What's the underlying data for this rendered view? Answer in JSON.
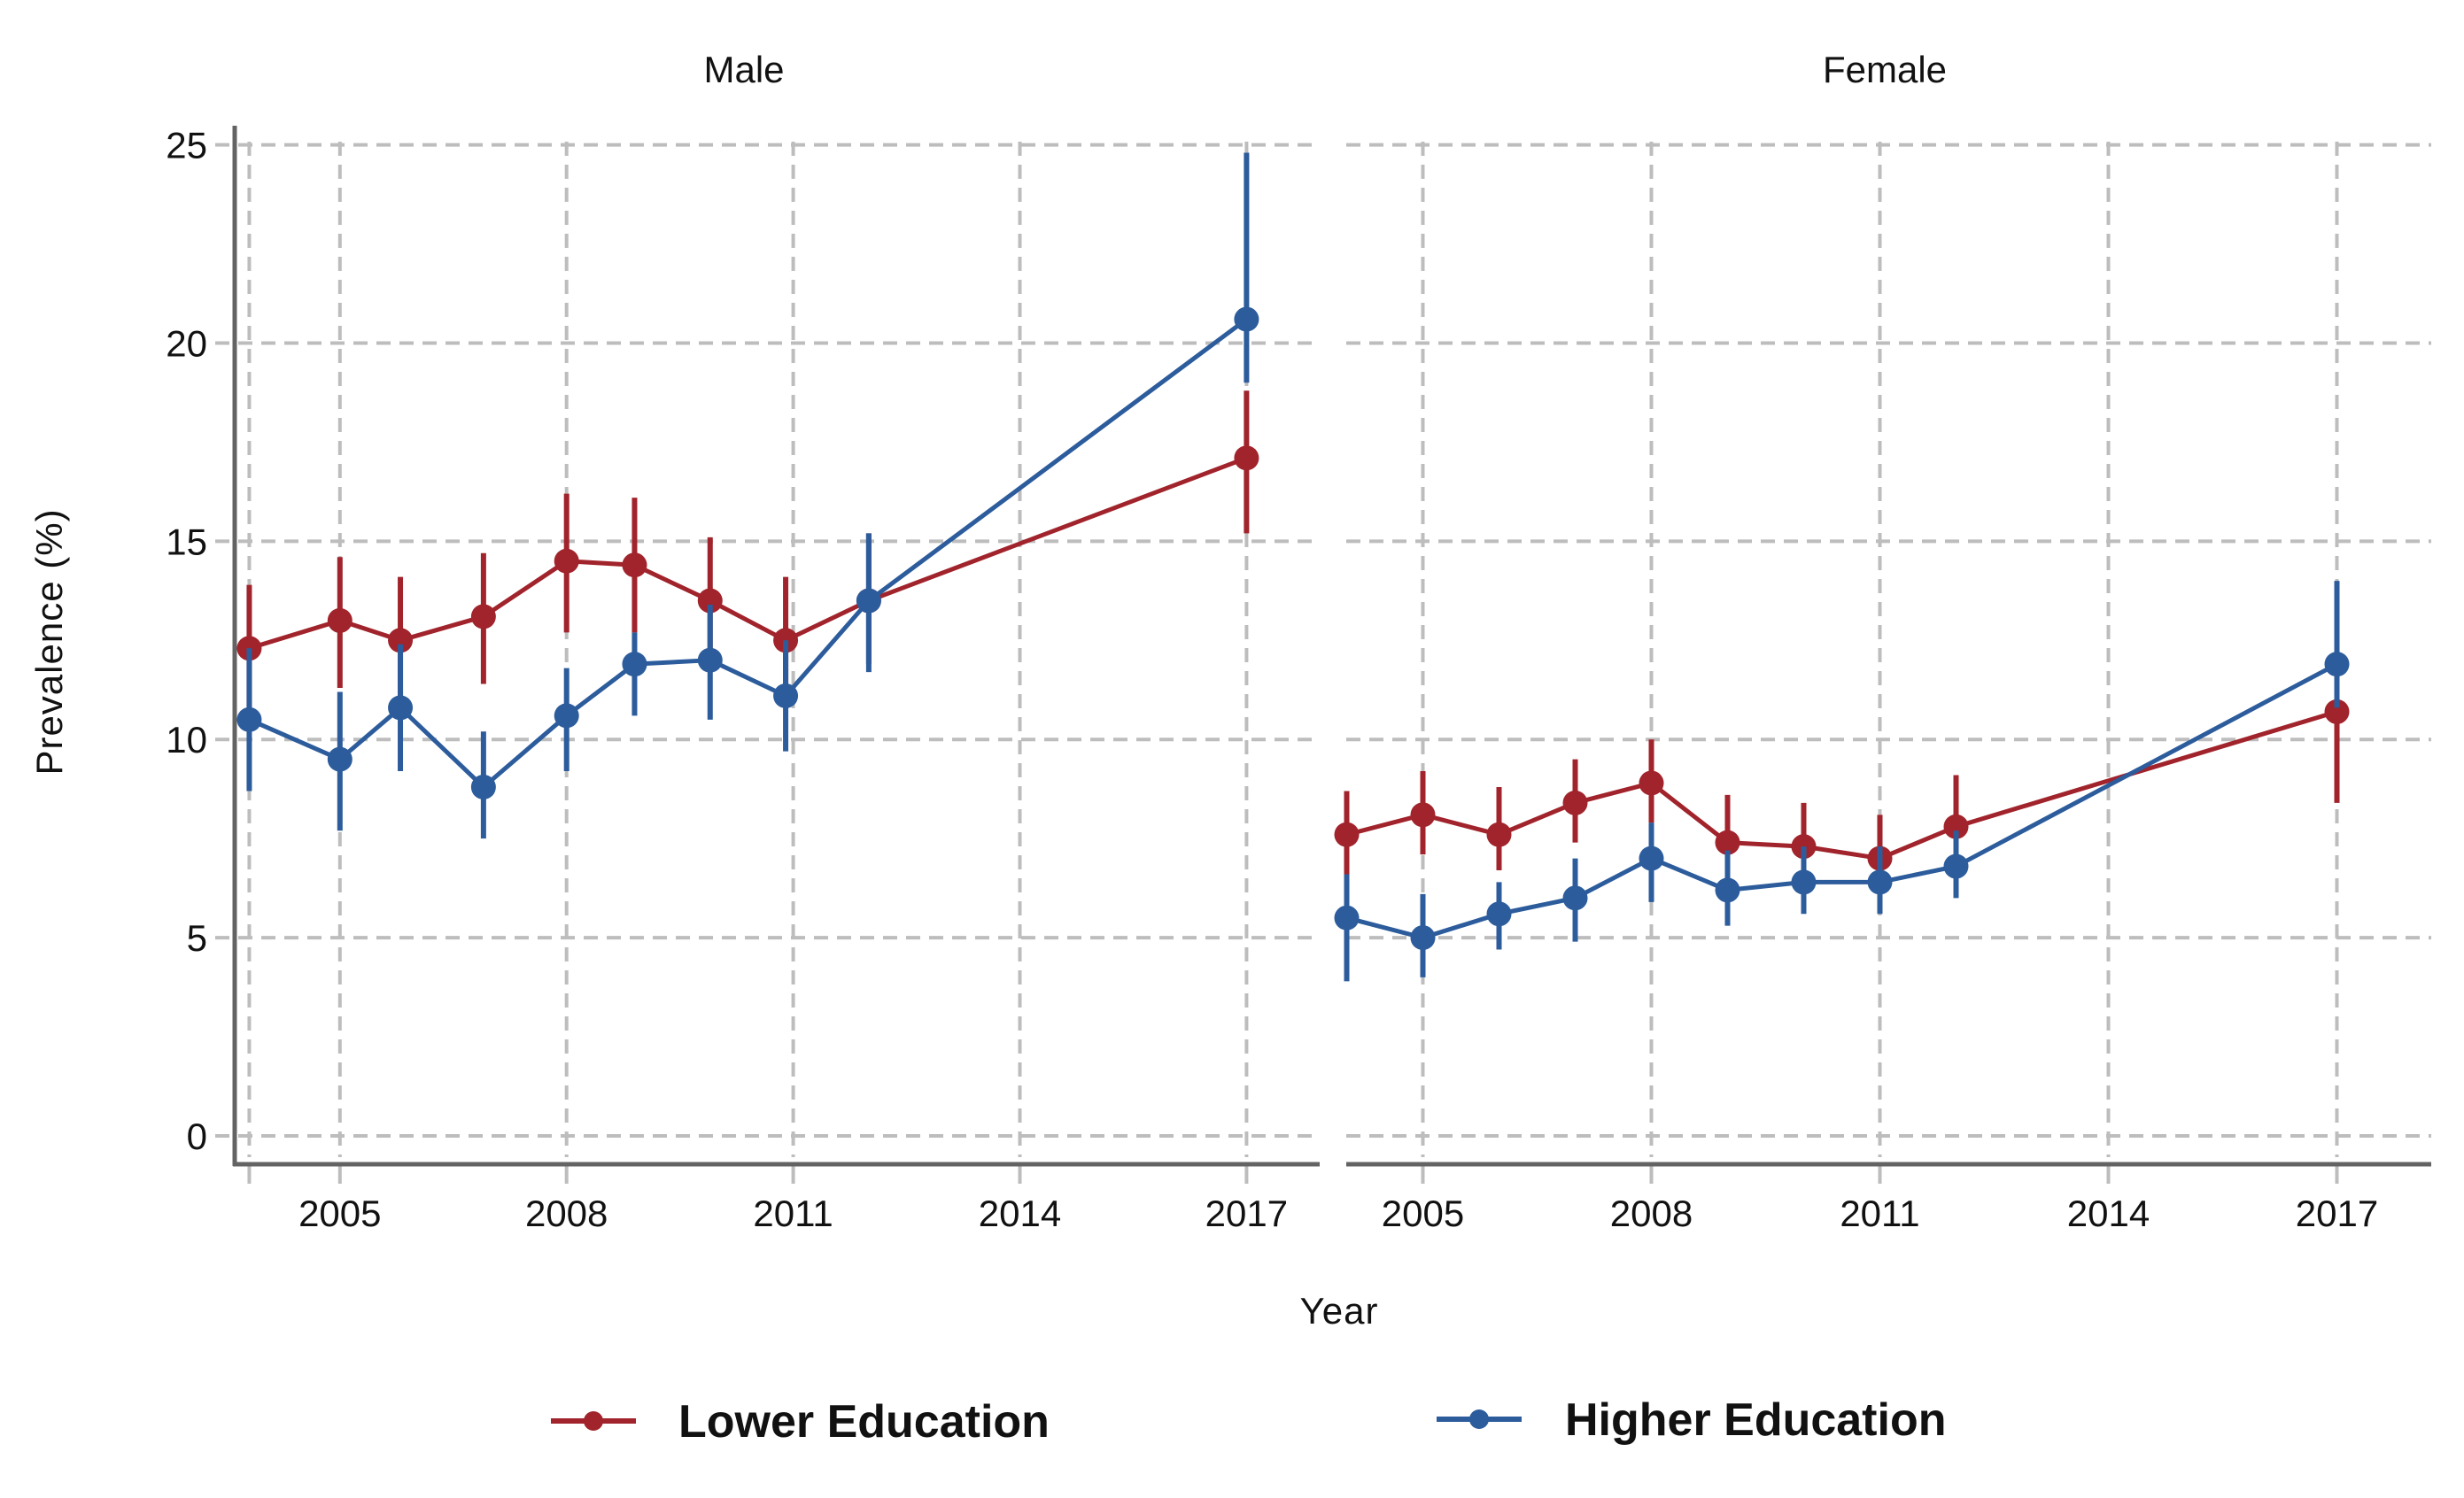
{
  "chart_data": {
    "type": "line",
    "title": "",
    "xlabel": "Year",
    "ylabel": "Prevalence (%)",
    "ylim": [
      0,
      25
    ],
    "yticks": [
      "0",
      "5",
      "10",
      "15",
      "20",
      "25"
    ],
    "xticks": [
      "2005",
      "2008",
      "2011",
      "2014",
      "2017"
    ],
    "grid": true,
    "legend_position": "bottom",
    "legend": [
      {
        "name": "Lower Education",
        "color": "#a1232b"
      },
      {
        "name": "Higher Education",
        "color": "#2c5c9c"
      }
    ],
    "panels": [
      {
        "label": "Male",
        "x": [
          2003.8,
          2005.0,
          2005.8,
          2006.9,
          2008.0,
          2008.9,
          2009.9,
          2010.9,
          2012.0,
          2017.0
        ],
        "series": [
          {
            "name": "Lower Education",
            "color": "#a1232b",
            "values": [
              12.3,
              13.0,
              12.5,
              13.1,
              14.5,
              14.4,
              13.5,
              12.5,
              13.5,
              17.1
            ],
            "ci_low": [
              10.8,
              11.3,
              11.1,
              11.4,
              12.7,
              12.7,
              11.9,
              10.8,
              11.9,
              15.2
            ],
            "ci_high": [
              13.9,
              14.6,
              14.1,
              14.7,
              16.2,
              16.1,
              15.1,
              14.1,
              15.2,
              18.8
            ]
          },
          {
            "name": "Higher Education",
            "color": "#2c5c9c",
            "values": [
              10.5,
              9.5,
              10.8,
              8.8,
              10.6,
              11.9,
              12.0,
              11.1,
              13.5,
              20.6
            ],
            "ci_low": [
              8.7,
              7.7,
              9.2,
              7.5,
              9.2,
              10.6,
              10.5,
              9.7,
              11.7,
              19.0
            ],
            "ci_high": [
              12.3,
              11.2,
              12.4,
              10.2,
              11.8,
              12.7,
              13.4,
              12.5,
              15.2,
              24.8
            ]
          }
        ]
      },
      {
        "label": "Female",
        "x": [
          2004,
          2005,
          2006,
          2007,
          2008,
          2009,
          2010,
          2011,
          2012,
          2017
        ],
        "series": [
          {
            "name": "Lower Education",
            "color": "#a1232b",
            "values": [
              7.6,
              8.1,
              7.6,
              8.4,
              8.9,
              7.4,
              7.3,
              7.0,
              7.8,
              10.7
            ],
            "ci_low": [
              6.6,
              7.1,
              6.7,
              7.4,
              7.9,
              6.3,
              6.7,
              6.0,
              7.0,
              8.4
            ],
            "ci_high": [
              8.7,
              9.2,
              8.8,
              9.5,
              10.0,
              8.6,
              8.4,
              8.1,
              9.1,
              12.7
            ]
          },
          {
            "name": "Higher Education",
            "color": "#2c5c9c",
            "values": [
              5.5,
              5.0,
              5.6,
              6.0,
              7.0,
              6.2,
              6.4,
              6.4,
              6.8,
              11.9
            ],
            "ci_low": [
              3.9,
              4.0,
              4.7,
              4.9,
              5.9,
              5.3,
              5.6,
              5.6,
              6.0,
              10.8
            ],
            "ci_high": [
              6.6,
              6.1,
              6.4,
              7.0,
              7.9,
              7.2,
              7.3,
              7.3,
              7.7,
              14.0
            ]
          }
        ]
      }
    ]
  }
}
